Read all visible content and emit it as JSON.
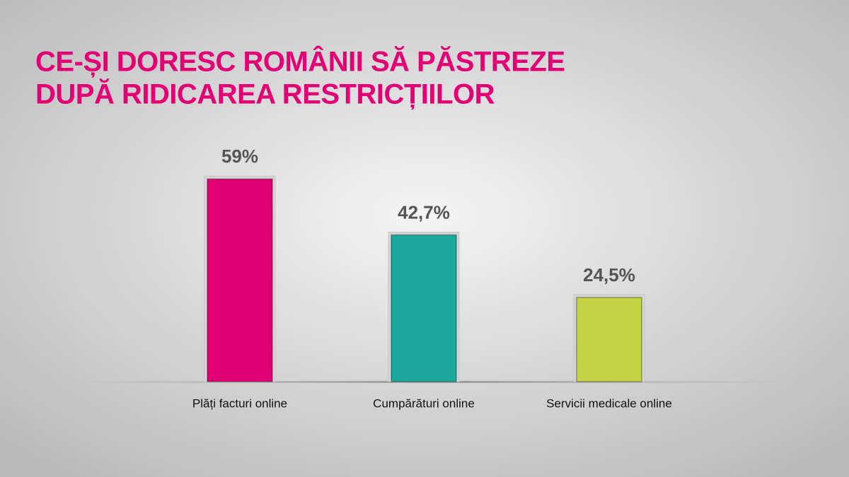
{
  "chart_data": {
    "type": "bar",
    "title": [
      "CE-ȘI DORESC ROMÂNII SĂ PĂSTREZE",
      "DUPĂ RIDICAREA RESTRICȚIILOR"
    ],
    "categories": [
      "Plăți facturi online",
      "Cumpărături online",
      "Servicii medicale online"
    ],
    "values": [
      59,
      42.7,
      24.5
    ],
    "value_labels": [
      "59%",
      "42,7%",
      "24,5%"
    ],
    "colors": [
      "#e20074",
      "#1aa99c",
      "#c3d443"
    ]
  }
}
